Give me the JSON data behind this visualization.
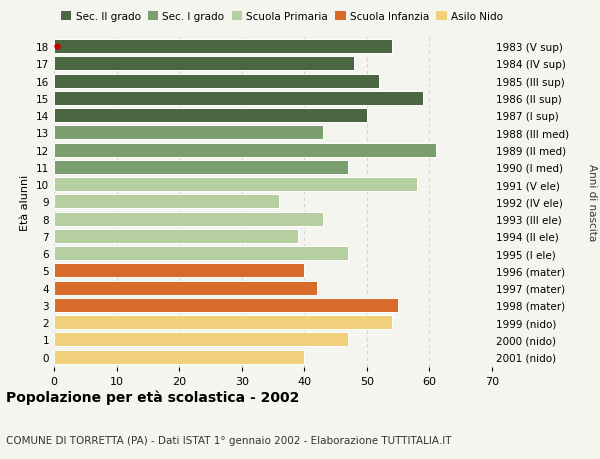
{
  "ages": [
    18,
    17,
    16,
    15,
    14,
    13,
    12,
    11,
    10,
    9,
    8,
    7,
    6,
    5,
    4,
    3,
    2,
    1,
    0
  ],
  "values": [
    54,
    48,
    52,
    59,
    50,
    43,
    61,
    47,
    58,
    36,
    43,
    39,
    47,
    40,
    42,
    55,
    54,
    47,
    40
  ],
  "years": [
    "1983 (V sup)",
    "1984 (IV sup)",
    "1985 (III sup)",
    "1986 (II sup)",
    "1987 (I sup)",
    "1988 (III med)",
    "1989 (II med)",
    "1990 (I med)",
    "1991 (V ele)",
    "1992 (IV ele)",
    "1993 (III ele)",
    "1994 (II ele)",
    "1995 (I ele)",
    "1996 (mater)",
    "1997 (mater)",
    "1998 (mater)",
    "1999 (nido)",
    "2000 (nido)",
    "2001 (nido)"
  ],
  "colors": [
    "#4a6741",
    "#4a6741",
    "#4a6741",
    "#4a6741",
    "#4a6741",
    "#7a9e6e",
    "#7a9e6e",
    "#7a9e6e",
    "#b5cfa0",
    "#b5cfa0",
    "#b5cfa0",
    "#b5cfa0",
    "#b5cfa0",
    "#d96b2a",
    "#d96b2a",
    "#d96b2a",
    "#f0d07a",
    "#f0d07a",
    "#f0d07a"
  ],
  "legend_labels": [
    "Sec. II grado",
    "Sec. I grado",
    "Scuola Primaria",
    "Scuola Infanzia",
    "Asilo Nido"
  ],
  "legend_colors": [
    "#4a6741",
    "#7a9e6e",
    "#b5cfa0",
    "#d96b2a",
    "#f0d07a"
  ],
  "title": "Popolazione per età scolastica - 2002",
  "subtitle": "COMUNE DI TORRETTA (PA) - Dati ISTAT 1° gennaio 2002 - Elaborazione TUTTITALIA.IT",
  "ylabel": "Età alunni",
  "right_label": "Anni di nascita",
  "xlim": [
    0,
    70
  ],
  "xticks": [
    0,
    10,
    20,
    30,
    40,
    50,
    60,
    70
  ],
  "background_color": "#f5f5f0",
  "bar_edge_color": "#ffffff",
  "grid_color": "#cccccc",
  "marker_age18_color": "#cc0000"
}
